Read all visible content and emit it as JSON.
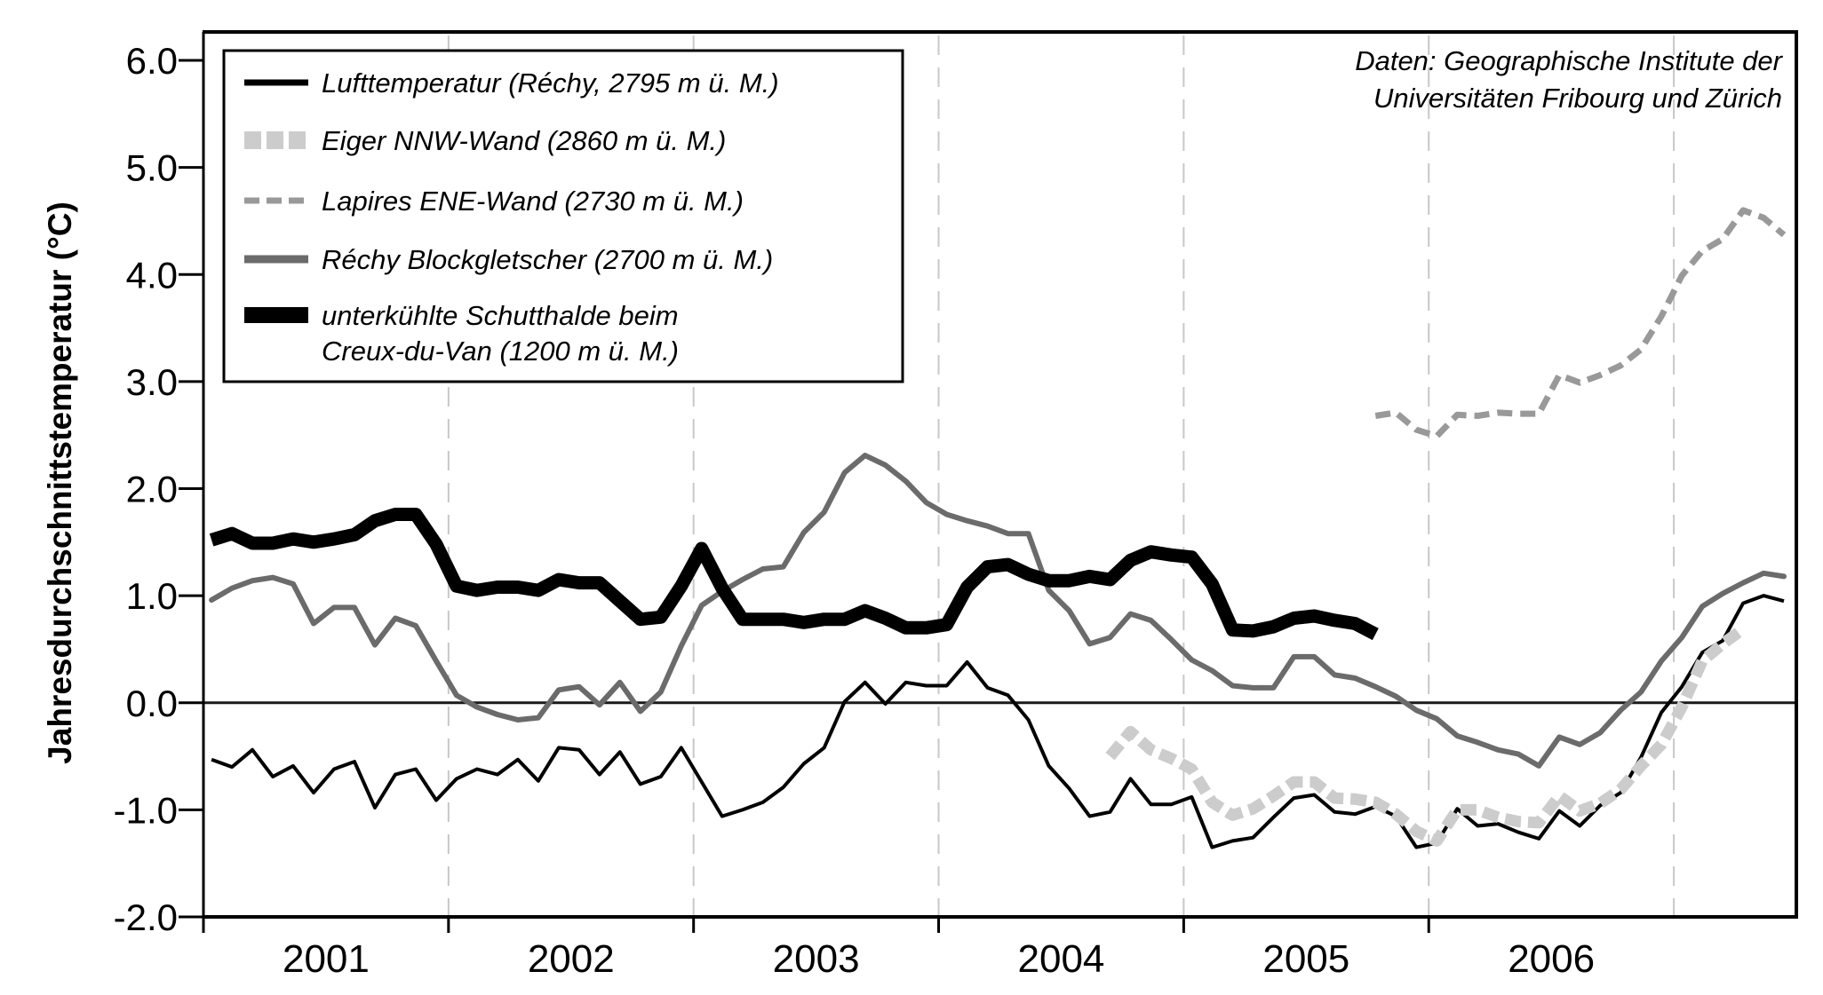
{
  "chart_data": {
    "type": "line",
    "title": "",
    "xlabel": "",
    "ylabel": "Jahresdurchschnittstemperatur (°C)",
    "ylim": [
      -2.0,
      6.0
    ],
    "xlim": [
      2001.0,
      2007.5
    ],
    "yticks": [
      "-2.0",
      "-1.0",
      "0.0",
      "1.0",
      "2.0",
      "3.0",
      "4.0",
      "5.0",
      "6.0"
    ],
    "ytick_values": [
      -2,
      -1,
      0,
      1,
      2,
      3,
      4,
      5,
      6
    ],
    "xtick_labels": [
      "2001",
      "2002",
      "2003",
      "2004",
      "2005",
      "2006"
    ],
    "xtick_years": [
      2001,
      2002,
      2003,
      2004,
      2005,
      2006
    ],
    "year_gridlines": [
      2002,
      2003,
      2004,
      2005,
      2006,
      2007
    ],
    "grid": "vertical dashed lines at year boundaries",
    "zero_line": true,
    "x_start": 2001.033,
    "x_step_years": 0.08333,
    "note": [
      "Daten: Geographische Institute der",
      "Universitäten Fribourg und Zürich"
    ],
    "legend_placement": "top-left",
    "series": [
      {
        "name": "Lufttemperatur (Réchy, 2795 m ü. M.)",
        "legend_lines": [
          "Lufttemperatur (Réchy, 2795 m ü. M.)"
        ],
        "style": "solid-thin",
        "color": "#000000",
        "start_index": 0,
        "values": [
          -0.53,
          -0.6,
          -0.44,
          -0.69,
          -0.59,
          -0.84,
          -0.62,
          -0.55,
          -0.98,
          -0.67,
          -0.62,
          -0.91,
          -0.71,
          -0.62,
          -0.67,
          -0.53,
          -0.73,
          -0.42,
          -0.44,
          -0.67,
          -0.46,
          -0.76,
          -0.69,
          -0.42,
          -0.74,
          -1.06,
          -1.0,
          -0.93,
          -0.79,
          -0.57,
          -0.42,
          0.01,
          0.19,
          -0.01,
          0.19,
          0.16,
          0.16,
          0.38,
          0.14,
          0.07,
          -0.16,
          -0.59,
          -0.8,
          -1.06,
          -1.02,
          -0.71,
          -0.95,
          -0.95,
          -0.88,
          -1.35,
          -1.29,
          -1.26,
          -1.07,
          -0.89,
          -0.86,
          -1.02,
          -1.04,
          -0.97,
          -1.06,
          -1.35,
          -1.31,
          -0.99,
          -1.15,
          -1.13,
          -1.21,
          -1.27,
          -1.01,
          -1.15,
          -0.96,
          -0.84,
          -0.51,
          -0.09,
          0.15,
          0.47,
          0.58,
          0.93,
          1.0,
          0.95
        ]
      },
      {
        "name": "Eiger NNW-Wand (2860 m ü. M.)",
        "legend_lines": [
          "Eiger NNW-Wand (2860 m ü. M.)"
        ],
        "style": "dotted-thick",
        "color": "#cccccc",
        "start_index": 44,
        "values": [
          -0.5,
          -0.27,
          -0.44,
          -0.52,
          -0.62,
          -0.93,
          -1.05,
          -0.99,
          -0.87,
          -0.74,
          -0.74,
          -0.89,
          -0.9,
          -0.93,
          -1.04,
          -1.2,
          -1.29,
          -1.0,
          -1.0,
          -1.07,
          -1.11,
          -1.12,
          -0.87,
          -1.01,
          -0.94,
          -0.81,
          -0.59,
          -0.39,
          -0.04,
          0.39,
          0.55,
          0.69
        ]
      },
      {
        "name": "Lapires ENE-Wand (2730 m ü. M.)",
        "legend_lines": [
          "Lapires ENE-Wand (2730 m ü. M.)"
        ],
        "style": "dashed",
        "color": "#999999",
        "start_index": 57,
        "values": [
          2.68,
          2.71,
          2.55,
          2.49,
          2.69,
          2.68,
          2.71,
          2.7,
          2.7,
          3.06,
          2.99,
          3.06,
          3.15,
          3.3,
          3.61,
          3.99,
          4.22,
          4.33,
          4.6,
          4.53,
          4.37
        ]
      },
      {
        "name": "Réchy Blockgletscher (2700 m ü. M.)",
        "legend_lines": [
          "Réchy Blockgletscher (2700 m ü. M.)"
        ],
        "style": "solid-medium",
        "color": "#6b6b6b",
        "start_index": 0,
        "values": [
          0.96,
          1.07,
          1.14,
          1.17,
          1.11,
          0.74,
          0.89,
          0.89,
          0.54,
          0.79,
          0.72,
          0.39,
          0.07,
          -0.04,
          -0.11,
          -0.16,
          -0.14,
          0.12,
          0.15,
          -0.02,
          0.19,
          -0.08,
          0.1,
          0.53,
          0.91,
          1.04,
          1.15,
          1.25,
          1.27,
          1.59,
          1.78,
          2.15,
          2.31,
          2.22,
          2.07,
          1.87,
          1.76,
          1.7,
          1.65,
          1.58,
          1.58,
          1.05,
          0.86,
          0.55,
          0.61,
          0.83,
          0.77,
          0.59,
          0.4,
          0.3,
          0.16,
          0.14,
          0.14,
          0.43,
          0.43,
          0.26,
          0.23,
          0.15,
          0.06,
          -0.07,
          -0.15,
          -0.31,
          -0.37,
          -0.44,
          -0.48,
          -0.59,
          -0.32,
          -0.39,
          -0.28,
          -0.07,
          0.1,
          0.39,
          0.61,
          0.9,
          1.02,
          1.12,
          1.21,
          1.18
        ]
      },
      {
        "name": "unterkühlte Schutthalde beim Creux-du-Van (1200 m ü. M.)",
        "legend_lines": [
          "unterkühlte Schutthalde beim",
          "Creux-du-Van (1200 m ü. M.)"
        ],
        "style": "solid-thick",
        "color": "#000000",
        "start_index": 0,
        "values": [
          1.52,
          1.58,
          1.49,
          1.49,
          1.53,
          1.5,
          1.53,
          1.57,
          1.7,
          1.76,
          1.76,
          1.48,
          1.09,
          1.05,
          1.08,
          1.08,
          1.05,
          1.15,
          1.12,
          1.12,
          0.95,
          0.78,
          0.8,
          1.09,
          1.44,
          1.07,
          0.78,
          0.78,
          0.78,
          0.75,
          0.78,
          0.78,
          0.86,
          0.79,
          0.7,
          0.7,
          0.73,
          1.08,
          1.27,
          1.29,
          1.2,
          1.14,
          1.14,
          1.18,
          1.15,
          1.33,
          1.41,
          1.38,
          1.36,
          1.11,
          0.68,
          0.67,
          0.71,
          0.79,
          0.81,
          0.77,
          0.74,
          0.64
        ]
      }
    ]
  }
}
